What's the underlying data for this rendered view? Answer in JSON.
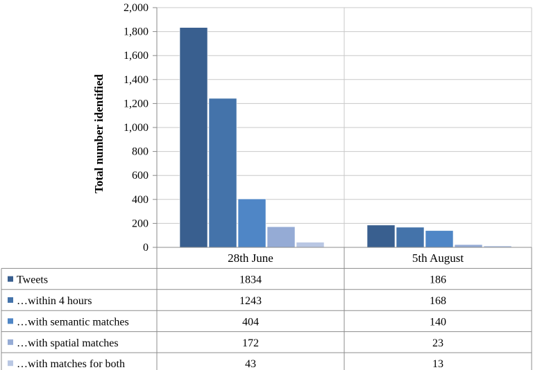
{
  "chart_data": {
    "type": "bar",
    "title": "",
    "xlabel": "",
    "ylabel": "Total number identified",
    "ylim": [
      0,
      2000
    ],
    "yticks": [
      0,
      200,
      400,
      600,
      800,
      1000,
      1200,
      1400,
      1600,
      1800,
      2000
    ],
    "ytick_labels": [
      "0",
      "200",
      "400",
      "600",
      "800",
      "1,000",
      "1,200",
      "1,400",
      "1,600",
      "1,800",
      "2,000"
    ],
    "grid": true,
    "legend": "data-table",
    "categories": [
      "28th June",
      "5th August"
    ],
    "series": [
      {
        "name": "Tweets",
        "color": "#395f8f",
        "values": [
          1834,
          186
        ]
      },
      {
        "name": "…within 4 hours",
        "color": "#4473aa",
        "values": [
          1243,
          168
        ]
      },
      {
        "name": "…with semantic matches",
        "color": "#4f86c6",
        "values": [
          404,
          140
        ]
      },
      {
        "name": "…with spatial matches",
        "color": "#95abd5",
        "values": [
          172,
          23
        ]
      },
      {
        "name": "…with matches for both",
        "color": "#b9c7e3",
        "values": [
          43,
          13
        ]
      }
    ]
  }
}
